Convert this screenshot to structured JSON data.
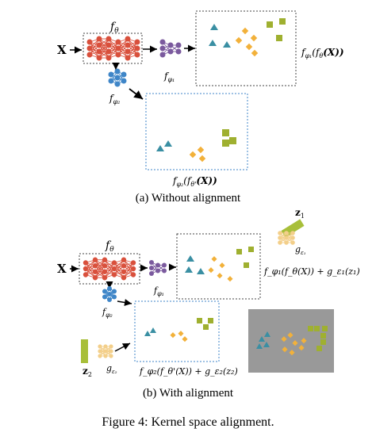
{
  "panel_a": {
    "input_label": "X",
    "net_theta_label": "f",
    "net_theta_sub": "θ",
    "net_phi1_label": "f",
    "net_phi1_sub": "φ₁",
    "net_phi2_label": "f",
    "net_phi2_sub": "φ₂",
    "box1_expr": "f_φ₁(f_θ(X))",
    "box1_f": "f",
    "box1_sub": "φ₁",
    "box1_mid": "(f",
    "box1_sub2": "θ",
    "box1_end": "(X))",
    "box2_f": "f",
    "box2_sub": "φ₂",
    "box2_mid": "(f",
    "box2_sub2": "θ'",
    "box2_end": "(X))",
    "caption": "(a) Without alignment"
  },
  "panel_b": {
    "input_label": "X",
    "net_theta_label": "f",
    "net_theta_sub": "θ",
    "net_phi1_label": "f",
    "net_phi1_sub": "φ₁",
    "net_phi2_label": "f",
    "net_phi2_sub": "φ₂",
    "z1_label": "z",
    "z1_sub": "1",
    "z2_label": "z",
    "z2_sub": "2",
    "g1_label": "g",
    "g1_sub": "ε₁",
    "g2_label": "g",
    "g2_sub": "ε₂",
    "box1_expr": "f_φ₁(f_θ(X)) + g_ε₁(z₁)",
    "box2_expr": "f_φ₂(f_θ'(X)) + g_ε₂(z₂)",
    "caption": "(b) With alignment"
  },
  "figure_caption": "Figure 4: Kernel space alignment.",
  "colors": {
    "theta_net": "#d9503c",
    "phi1_net": "#7b5a9e",
    "phi2_net": "#3f86c8",
    "g_net": "#f3cf8a",
    "triangle": "#3a8fa3",
    "diamond": "#f2b13a",
    "square": "#9fb030",
    "z_bar": "#a8bf3a",
    "box_a_border": "#444444",
    "box_b_border": "#3f86c8",
    "gray_box": "#999999"
  }
}
